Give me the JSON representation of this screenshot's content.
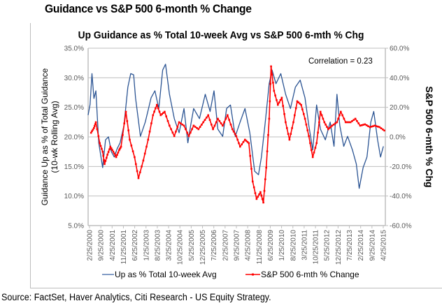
{
  "page": {
    "title": "Guidance vs S&P 500 6-month % Change",
    "source": "Source: FactSet, Haver Analytics, Citi Research - US Equity Strategy."
  },
  "chart_data": {
    "type": "line",
    "title": "Up Guidance as % Total 10-week Avg vs S&P 500 6-mth % Chg",
    "xlabel": "",
    "ylabel": "Guidance Up as % of Total Guidance (10-wk Rolling Avg)",
    "ylabel_lines": [
      "Guidance Up as % of Total Guidance",
      "(10-wk Rolling Avg)"
    ],
    "y2label": "S&P 500 6-mth % Chg",
    "ylim": [
      5,
      35
    ],
    "y2lim": [
      -60,
      60
    ],
    "xlim": [
      2000.15,
      2015.5
    ],
    "grid": true,
    "legend_position": "bottom",
    "yticks": [
      "5.0%",
      "10.0%",
      "15.0%",
      "20.0%",
      "25.0%",
      "30.0%",
      "35.0%"
    ],
    "ytick_values": [
      5,
      10,
      15,
      20,
      25,
      30,
      35
    ],
    "y2ticks": [
      "-60.0%",
      "-40.0%",
      "-20.0%",
      "0.0%",
      "20.0%",
      "40.0%",
      "60.0%"
    ],
    "y2tick_values": [
      -60,
      -40,
      -20,
      0,
      20,
      40,
      60
    ],
    "xticks": [
      "2/25/2000",
      "9/25/2000",
      "4/25/2001",
      "11/25/2001",
      "6/25/2002",
      "1/25/2003",
      "8/25/2003",
      "3/25/2004",
      "10/25/2004",
      "5/25/2005",
      "12/25/2005",
      "7/25/2006",
      "2/25/2007",
      "9/25/2007",
      "4/25/2008",
      "11/25/2008",
      "6/25/2009",
      "1/25/2010",
      "8/25/2010",
      "3/25/2011",
      "10/25/2011",
      "5/25/2012",
      "12/25/2012",
      "7/25/2013",
      "2/25/2014",
      "9/25/2014",
      "4/25/2015"
    ],
    "annotation": "Correlation = 0.23",
    "series": [
      {
        "name": "Up as % Total 10-week Avg",
        "axis": "left",
        "color": "#1f4e8c",
        "marker": false,
        "x": [
          2000.15,
          2000.25,
          2000.35,
          2000.45,
          2000.55,
          2000.7,
          2000.9,
          2001.05,
          2001.2,
          2001.35,
          2001.5,
          2001.65,
          2001.8,
          2002.0,
          2002.2,
          2002.35,
          2002.5,
          2002.6,
          2002.85,
          2003.1,
          2003.25,
          2003.4,
          2003.6,
          2003.8,
          2004.0,
          2004.15,
          2004.35,
          2004.6,
          2004.85,
          2005.1,
          2005.3,
          2005.45,
          2005.6,
          2005.9,
          2006.2,
          2006.45,
          2006.65,
          2006.85,
          2007.1,
          2007.3,
          2007.5,
          2007.75,
          2008.0,
          2008.25,
          2008.5,
          2008.75,
          2008.95,
          2009.1,
          2009.3,
          2009.5,
          2009.65,
          2009.85,
          2010.1,
          2010.35,
          2010.6,
          2010.85,
          2011.1,
          2011.35,
          2011.55,
          2011.75,
          2011.95,
          2012.15,
          2012.4,
          2012.65,
          2012.85,
          2013.0,
          2013.15,
          2013.35,
          2013.55,
          2013.8,
          2014.0,
          2014.15,
          2014.35,
          2014.55,
          2014.75,
          2014.9,
          2015.1,
          2015.25,
          2015.4
        ],
        "values": [
          23.7,
          25.5,
          30.7,
          26.5,
          27.8,
          19.0,
          14.8,
          19.5,
          20.0,
          17.5,
          16.6,
          18.0,
          19.0,
          21.9,
          28.4,
          30.7,
          30.5,
          26.6,
          20.1,
          22.5,
          24.5,
          26.6,
          27.8,
          24.8,
          31.3,
          32.3,
          27.2,
          23.1,
          20.7,
          24.8,
          19.0,
          22.0,
          24.8,
          23.1,
          27.2,
          24.3,
          27.8,
          21.3,
          20.1,
          24.8,
          25.4,
          20.1,
          22.5,
          24.8,
          20.7,
          14.2,
          13.6,
          16.6,
          22.5,
          29.0,
          31.3,
          29.0,
          30.7,
          27.2,
          24.8,
          28.4,
          29.6,
          26.6,
          21.9,
          17.8,
          25.4,
          21.3,
          19.5,
          22.5,
          18.4,
          27.2,
          21.9,
          18.4,
          20.1,
          17.8,
          15.4,
          11.3,
          14.8,
          16.6,
          22.5,
          24.3,
          19.5,
          16.6,
          18.4
        ]
      },
      {
        "name": "S&P 500 6-mth % Change",
        "axis": "right",
        "color": "#ff0000",
        "marker": true,
        "x": [
          2000.3,
          2000.45,
          2000.55,
          2000.75,
          2000.9,
          2001.0,
          2001.15,
          2001.3,
          2001.45,
          2001.6,
          2001.75,
          2001.85,
          2002.1,
          2002.3,
          2002.55,
          2002.75,
          2003.0,
          2003.25,
          2003.5,
          2003.7,
          2003.9,
          2004.1,
          2004.35,
          2004.6,
          2004.85,
          2005.1,
          2005.35,
          2005.6,
          2005.85,
          2006.1,
          2006.35,
          2006.6,
          2006.85,
          2007.1,
          2007.35,
          2007.6,
          2007.8,
          2008.0,
          2008.25,
          2008.45,
          2008.65,
          2008.85,
          2009.05,
          2009.2,
          2009.35,
          2009.5,
          2009.6,
          2009.75,
          2009.95,
          2010.15,
          2010.35,
          2010.55,
          2010.75,
          2010.95,
          2011.15,
          2011.35,
          2011.55,
          2011.75,
          2011.95,
          2012.15,
          2012.35,
          2012.55,
          2012.75,
          2013.0,
          2013.2,
          2013.45,
          2013.7,
          2013.95,
          2014.2,
          2014.45,
          2014.7,
          2014.95,
          2015.2,
          2015.45
        ],
        "values": [
          2.8,
          6.0,
          9.9,
          -4.2,
          -10.0,
          -18.4,
          -12.0,
          -6.6,
          -10.0,
          -13.7,
          -9.0,
          -6.6,
          17.0,
          -1.9,
          -13.7,
          -27.9,
          -16.0,
          -1.9,
          14.7,
          21.7,
          14.7,
          17.0,
          7.6,
          0.5,
          9.9,
          7.6,
          0.5,
          7.6,
          5.2,
          9.9,
          14.7,
          5.2,
          12.3,
          7.6,
          14.7,
          5.2,
          0.5,
          -6.6,
          -1.9,
          -4.2,
          -30.2,
          -42.0,
          -37.3,
          -44.4,
          -20.8,
          12.3,
          47.7,
          31.2,
          21.7,
          26.5,
          9.9,
          -1.9,
          9.9,
          24.1,
          21.7,
          12.3,
          0.5,
          -13.7,
          -4.2,
          17.0,
          9.9,
          5.2,
          7.6,
          9.9,
          17.0,
          9.9,
          9.9,
          12.3,
          7.6,
          8.5,
          6.6,
          7.6,
          6.6,
          4.3
        ]
      }
    ]
  }
}
